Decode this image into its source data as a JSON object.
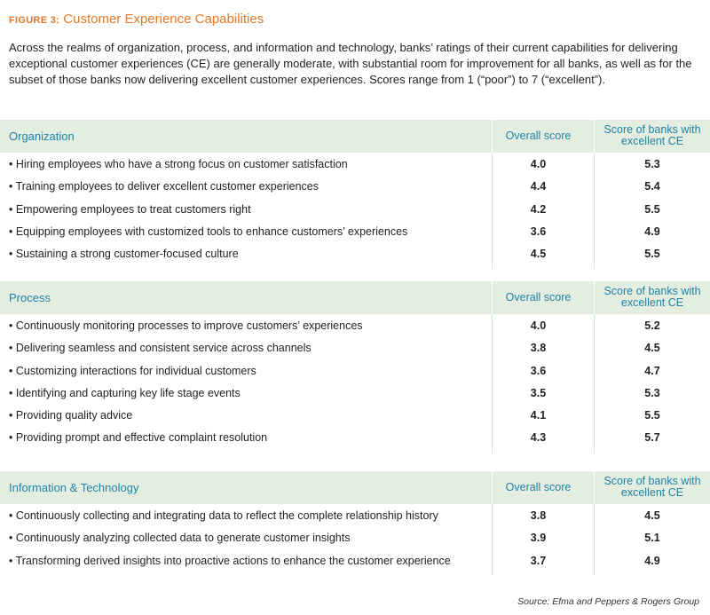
{
  "figure": {
    "label": "FIGURE 3:",
    "title": "Customer Experience Capabilities",
    "intro": "Across the realms of organization, process, and information and technology, banks’ ratings of their current capabilities for delivering exceptional customer experiences (CE) are generally moderate, with substantial room for improvement for all banks, as well as for the subset of those banks now delivering excellent customer experiences. Scores range from 1 (“poor”) to 7 (“excellent”)."
  },
  "sections": [
    {
      "title": "Organization",
      "col1": "Overall score",
      "col2": "Score of banks with excellent CE",
      "rows": [
        {
          "label": "• Hiring employees who have a strong focus on customer satisfaction",
          "overall": "4.0",
          "excellent": "5.3"
        },
        {
          "label": "• Training employees to deliver excellent customer experiences",
          "overall": "4.4",
          "excellent": "5.4"
        },
        {
          "label": "• Empowering employees to treat customers right",
          "overall": "4.2",
          "excellent": "5.5"
        },
        {
          "label": "• Equipping employees with customized tools to enhance customers’ experiences",
          "overall": "3.6",
          "excellent": "4.9"
        },
        {
          "label": "• Sustaining a strong customer-focused culture",
          "overall": "4.5",
          "excellent": "5.5"
        }
      ]
    },
    {
      "title": "Process",
      "col1": "Overall score",
      "col2": "Score of banks with excellent CE",
      "rows": [
        {
          "label": "• Continuously monitoring processes to improve customers’ experiences",
          "overall": "4.0",
          "excellent": "5.2"
        },
        {
          "label": "• Delivering seamless and consistent service across channels",
          "overall": "3.8",
          "excellent": "4.5"
        },
        {
          "label": "• Customizing interactions for individual customers",
          "overall": "3.6",
          "excellent": "4.7"
        },
        {
          "label": "• Identifying and capturing key life stage events",
          "overall": "3.5",
          "excellent": "5.3"
        },
        {
          "label": "• Providing quality advice",
          "overall": "4.1",
          "excellent": "5.5"
        },
        {
          "label": "• Providing prompt and effective complaint resolution",
          "overall": "4.3",
          "excellent": "5.7"
        }
      ]
    },
    {
      "title": "Information & Technology",
      "col1": "Overall score",
      "col2": "Score of banks with excellent CE",
      "rows": [
        {
          "label": "• Continuously collecting and integrating data to reflect the complete relationship history",
          "overall": "3.8",
          "excellent": "4.5"
        },
        {
          "label": "• Continuously analyzing collected data to generate customer insights",
          "overall": "3.9",
          "excellent": "5.1"
        },
        {
          "label": "• Transforming derived insights into proactive actions to enhance the customer experience",
          "overall": "3.7",
          "excellent": "4.9"
        }
      ]
    }
  ],
  "source": "Source: Efma and Peppers & Rogers Group"
}
